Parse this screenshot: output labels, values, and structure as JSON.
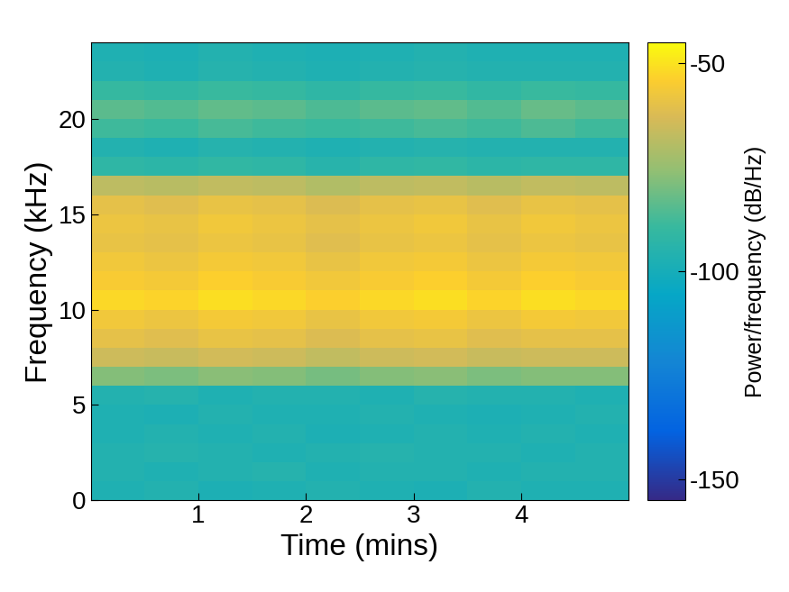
{
  "chart_data": {
    "type": "spectrogram",
    "x_label": "Time (mins)",
    "y_label": "Frequency (kHz)",
    "colorbar_label": "Power/frequency (dB/Hz)",
    "xlim": [
      0,
      5
    ],
    "xticks": [
      1,
      2,
      3,
      4
    ],
    "ylim": [
      0,
      24
    ],
    "yticks": [
      0,
      5,
      10,
      15,
      20
    ],
    "time_edges": [
      0,
      0.5,
      1,
      1.5,
      2,
      2.5,
      3,
      3.5,
      4,
      4.5,
      5
    ],
    "freq_edges": [
      0,
      1,
      2,
      3,
      4,
      5,
      6,
      7,
      8,
      9,
      10,
      11,
      12,
      13,
      14,
      15,
      16,
      17,
      18,
      19,
      20,
      21,
      22,
      23,
      24
    ],
    "cells": [
      [
        -97,
        -96,
        -98,
        -97,
        -96,
        -97,
        -98,
        -96,
        -97,
        -97
      ],
      [
        -96,
        -97,
        -96,
        -95,
        -97,
        -96,
        -96,
        -97,
        -96,
        -96
      ],
      [
        -96,
        -95,
        -96,
        -97,
        -96,
        -95,
        -96,
        -96,
        -97,
        -96
      ],
      [
        -97,
        -96,
        -97,
        -96,
        -98,
        -97,
        -96,
        -97,
        -96,
        -97
      ],
      [
        -97,
        -98,
        -96,
        -97,
        -97,
        -96,
        -97,
        -98,
        -97,
        -96
      ],
      [
        -96,
        -95,
        -97,
        -96,
        -96,
        -97,
        -95,
        -96,
        -96,
        -97
      ],
      [
        -78,
        -79,
        -77,
        -78,
        -80,
        -78,
        -77,
        -79,
        -78,
        -78
      ],
      [
        -65,
        -66,
        -64,
        -65,
        -67,
        -65,
        -64,
        -66,
        -65,
        -65
      ],
      [
        -60,
        -61,
        -59,
        -60,
        -62,
        -60,
        -59,
        -61,
        -60,
        -60
      ],
      [
        -57,
        -58,
        -56,
        -57,
        -59,
        -57,
        -56,
        -58,
        -56,
        -57
      ],
      [
        -52,
        -53,
        -51,
        -52,
        -54,
        -52,
        -51,
        -53,
        -51,
        -52
      ],
      [
        -55,
        -56,
        -54,
        -55,
        -57,
        -55,
        -54,
        -56,
        -54,
        -55
      ],
      [
        -57,
        -58,
        -56,
        -57,
        -59,
        -57,
        -56,
        -58,
        -56,
        -57
      ],
      [
        -59,
        -60,
        -58,
        -59,
        -61,
        -59,
        -58,
        -60,
        -58,
        -59
      ],
      [
        -58,
        -59,
        -57,
        -58,
        -60,
        -58,
        -57,
        -59,
        -57,
        -58
      ],
      [
        -60,
        -61,
        -59,
        -60,
        -62,
        -60,
        -59,
        -61,
        -59,
        -60
      ],
      [
        -68,
        -69,
        -67,
        -68,
        -70,
        -68,
        -67,
        -69,
        -67,
        -68
      ],
      [
        -92,
        -93,
        -91,
        -92,
        -94,
        -92,
        -91,
        -93,
        -92,
        -92
      ],
      [
        -96,
        -97,
        -95,
        -96,
        -97,
        -96,
        -95,
        -96,
        -96,
        -96
      ],
      [
        -88,
        -89,
        -87,
        -88,
        -89,
        -88,
        -87,
        -88,
        -86,
        -88
      ],
      [
        -84,
        -85,
        -83,
        -84,
        -86,
        -84,
        -83,
        -85,
        -82,
        -84
      ],
      [
        -90,
        -91,
        -89,
        -90,
        -92,
        -90,
        -89,
        -91,
        -89,
        -90
      ],
      [
        -96,
        -97,
        -95,
        -96,
        -97,
        -96,
        -95,
        -96,
        -96,
        -96
      ],
      [
        -97,
        -98,
        -96,
        -97,
        -98,
        -97,
        -96,
        -97,
        -97,
        -97
      ]
    ],
    "clim": [
      -155,
      -45
    ],
    "cticks": [
      -150,
      -100,
      -50
    ]
  }
}
